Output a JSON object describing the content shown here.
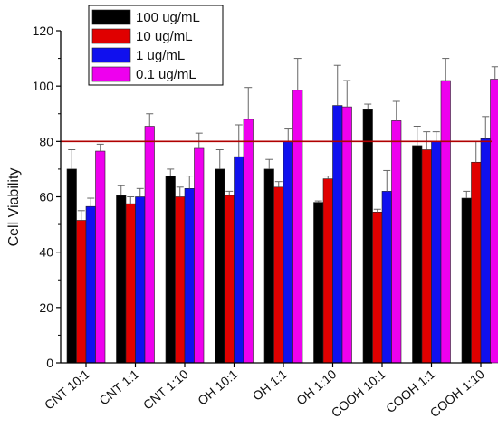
{
  "chart_data": {
    "type": "bar",
    "title": "",
    "xlabel": "",
    "ylabel": "Cell Viability",
    "ylim": [
      0,
      120
    ],
    "yticks": [
      0,
      20,
      40,
      60,
      80,
      100,
      120
    ],
    "grid": false,
    "legend_position": "top-left",
    "categories": [
      "CNT 10:1",
      "CNT 1:1",
      "CNT 1:10",
      "OH 10:1",
      "OH 1:1",
      "OH 1:10",
      "COOH 10:1",
      "COOH 1:1",
      "COOH 1:10"
    ],
    "series": [
      {
        "name": "100 ug/mL",
        "color": "#000000",
        "values": [
          70,
          60.5,
          67.5,
          70,
          70,
          58,
          91.5,
          78.5,
          59.5
        ],
        "errors": [
          7,
          3.5,
          2.5,
          7,
          3.5,
          0.5,
          2,
          7,
          2.5
        ]
      },
      {
        "name": "10 ug/mL",
        "color": "#e00000",
        "values": [
          51.5,
          57.5,
          60,
          60.5,
          63.5,
          66.5,
          54.5,
          77,
          72.5
        ],
        "errors": [
          3.5,
          2.5,
          3.5,
          1.5,
          2,
          1,
          1,
          6.5,
          7.5
        ]
      },
      {
        "name": "1 ug/mL",
        "color": "#1010ee",
        "values": [
          56.5,
          60,
          63,
          74.5,
          80,
          93,
          62,
          80,
          81
        ],
        "errors": [
          3,
          3,
          4.5,
          11.5,
          4.5,
          14.5,
          7.5,
          3.5,
          8
        ]
      },
      {
        "name": "0.1 ug/mL",
        "color": "#ee00ee",
        "values": [
          76.5,
          85.5,
          77.5,
          88,
          98.5,
          92.5,
          87.5,
          102,
          102.5
        ],
        "errors": [
          2.5,
          4.5,
          5.5,
          11.5,
          11.5,
          9.5,
          7,
          8,
          4.5
        ]
      }
    ],
    "reference_line": {
      "y": 80,
      "color": "#b00000"
    }
  }
}
